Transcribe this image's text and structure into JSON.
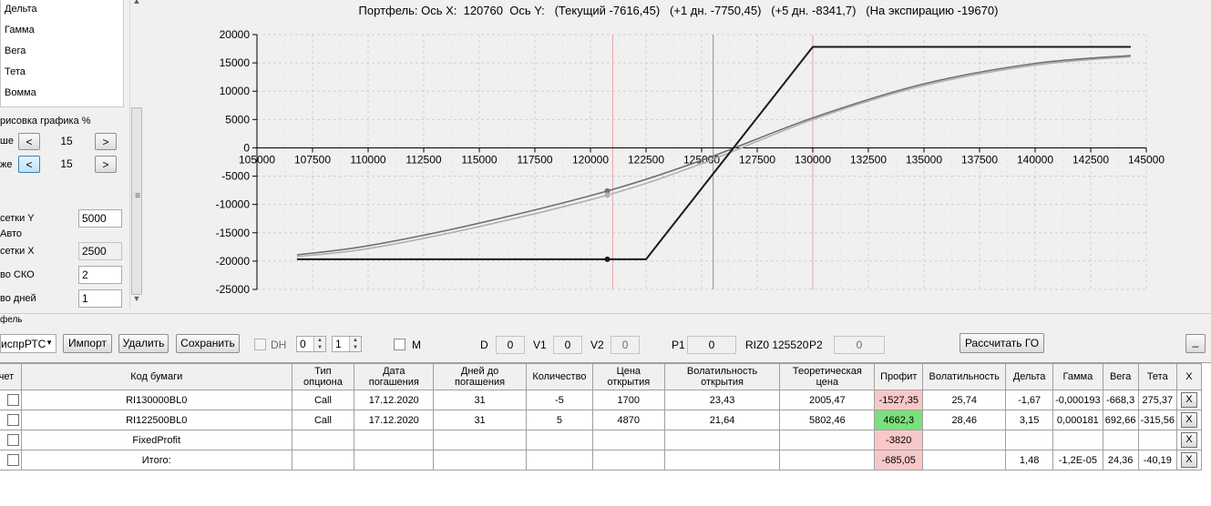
{
  "greeks_list": [
    "Дельта",
    "Гамма",
    "Вега",
    "Тета",
    "Вомма"
  ],
  "draw_group": {
    "title": "рисовка графика %",
    "above_label": "ше",
    "below_label": "же",
    "above_value": "15",
    "below_value": "15",
    "prev_btn": "<",
    "next_btn": ">"
  },
  "grid_settings": {
    "y_label": "сетки Y",
    "y_value": "5000",
    "auto_label": "Авто",
    "x_label": "сетки X",
    "x_value": "2500",
    "sko_label": "во СКО",
    "sko_value": "2",
    "days_label": "во дней",
    "days_value": "1"
  },
  "chart": {
    "title": "Портфель: Ось X:  120760  Ось Y:   (Текущий -7616,45)   (+1 дн. -7750,45)   (+5 дн. -8341,7)   (На экспирацию -19670)"
  },
  "chart_data": {
    "type": "line",
    "title": "Портфель: Ось X:  120760  Ось Y:   (Текущий -7616,45)   (+1 дн. -7750,45)   (+5 дн. -8341,7)   (На экспирацию -19670)",
    "xlim": [
      105000,
      145000
    ],
    "ylim": [
      -25000,
      20000
    ],
    "x_ticks": [
      "105000",
      "107500",
      "110000",
      "112500",
      "115000",
      "117500",
      "120000",
      "122500",
      "125000",
      "127500",
      "130000",
      "132500",
      "135000",
      "137500",
      "140000",
      "142500",
      "145000"
    ],
    "y_ticks": [
      "20000",
      "15000",
      "10000",
      "5000",
      "0",
      "-5000",
      "-10000",
      "-15000",
      "-20000",
      "-25000"
    ],
    "grid": true,
    "vertical_lines": [
      {
        "x": 121000,
        "color": "#f2a0a0"
      },
      {
        "x": 125520,
        "color": "#909090"
      },
      {
        "x": 130000,
        "color": "#f2a0a0"
      }
    ],
    "series": [
      {
        "color": "#1a1a1a",
        "x": [
          106800,
          122500,
          130000,
          144300
        ],
        "y": [
          -19670,
          -19670,
          17830,
          17830
        ]
      },
      {
        "color": "#707070",
        "x": [
          106800,
          110000,
          115000,
          120760,
          125000,
          130000,
          135000,
          140000,
          144300
        ],
        "y": [
          -18900,
          -17300,
          -13300,
          -7616,
          -2200,
          5300,
          11300,
          14900,
          16300
        ]
      },
      {
        "color": "#b0b0b0",
        "x": [
          106800,
          110000,
          115000,
          120760,
          125000,
          130000,
          135000,
          140000,
          144300
        ],
        "y": [
          -19200,
          -17800,
          -13900,
          -8342,
          -2800,
          5000,
          11000,
          14600,
          16100
        ]
      }
    ],
    "markers": [
      {
        "x": 120760,
        "y": -7616,
        "color": "#707070"
      },
      {
        "x": 120760,
        "y": -8342,
        "color": "#b0b0b0"
      },
      {
        "x": 120760,
        "y": -19670,
        "color": "#1a1a1a"
      }
    ]
  },
  "portfolio_bar": {
    "group_label": "фель",
    "combo_value": "испрРТС",
    "import_btn": "Импорт",
    "delete_btn": "Удалить",
    "save_btn": "Сохранить",
    "dh_label": "DH",
    "spin1": "0",
    "spin2": "1",
    "m_label": "M",
    "d_label": "D",
    "d_value": "0",
    "v1_label": "V1",
    "v1_value": "0",
    "v2_label": "V2",
    "v2_value": "0",
    "p1_label": "P1",
    "p1_value": "0",
    "riz_label": "RIZ0 125520",
    "p2_label": "P2",
    "p2_value": "0",
    "calc_btn": "Рассчитать ГО",
    "min_btn": "_"
  },
  "table": {
    "headers": [
      "чет",
      "Код бумаги",
      "Тип опциона",
      "Дата погашения",
      "Дней до погашения",
      "Количество",
      "Цена открытия",
      "Волатильность открытия",
      "Теоретическая цена",
      "Профит",
      "Волатильность",
      "Дельта",
      "Гамма",
      "Вега",
      "Тета",
      "X"
    ],
    "rows": [
      {
        "code": "RI130000BL0",
        "type": "Call",
        "date": "17.12.2020",
        "days": "31",
        "qty": "-5",
        "price": "1700",
        "vol_open": "23,43",
        "theo": "2005,47",
        "profit": "-1527,35",
        "profit_state": "neg",
        "vol": "25,74",
        "delta": "-1,67",
        "gamma": "-0,000193",
        "vega": "-668,3",
        "theta": "275,37",
        "x": "X"
      },
      {
        "code": "RI122500BL0",
        "type": "Call",
        "date": "17.12.2020",
        "days": "31",
        "qty": "5",
        "price": "4870",
        "vol_open": "21,64",
        "theo": "5802,46",
        "profit": "4662,3",
        "profit_state": "pos",
        "vol": "28,46",
        "delta": "3,15",
        "gamma": "0,000181",
        "vega": "692,66",
        "theta": "-315,56",
        "x": "X"
      },
      {
        "code": "FixedProfit",
        "type": "",
        "date": "",
        "days": "",
        "qty": "",
        "price": "",
        "vol_open": "",
        "theo": "",
        "profit": "-3820",
        "profit_state": "neg",
        "vol": "",
        "delta": "",
        "gamma": "",
        "vega": "",
        "theta": "",
        "x": "X"
      },
      {
        "code": "Итого:",
        "type": "",
        "date": "",
        "days": "",
        "qty": "",
        "price": "",
        "vol_open": "",
        "theo": "",
        "profit": "-685,05",
        "profit_state": "neg",
        "vol": "",
        "delta": "1,48",
        "gamma": "-1,2E-05",
        "vega": "24,36",
        "theta": "-40,19",
        "x": "X"
      }
    ]
  }
}
